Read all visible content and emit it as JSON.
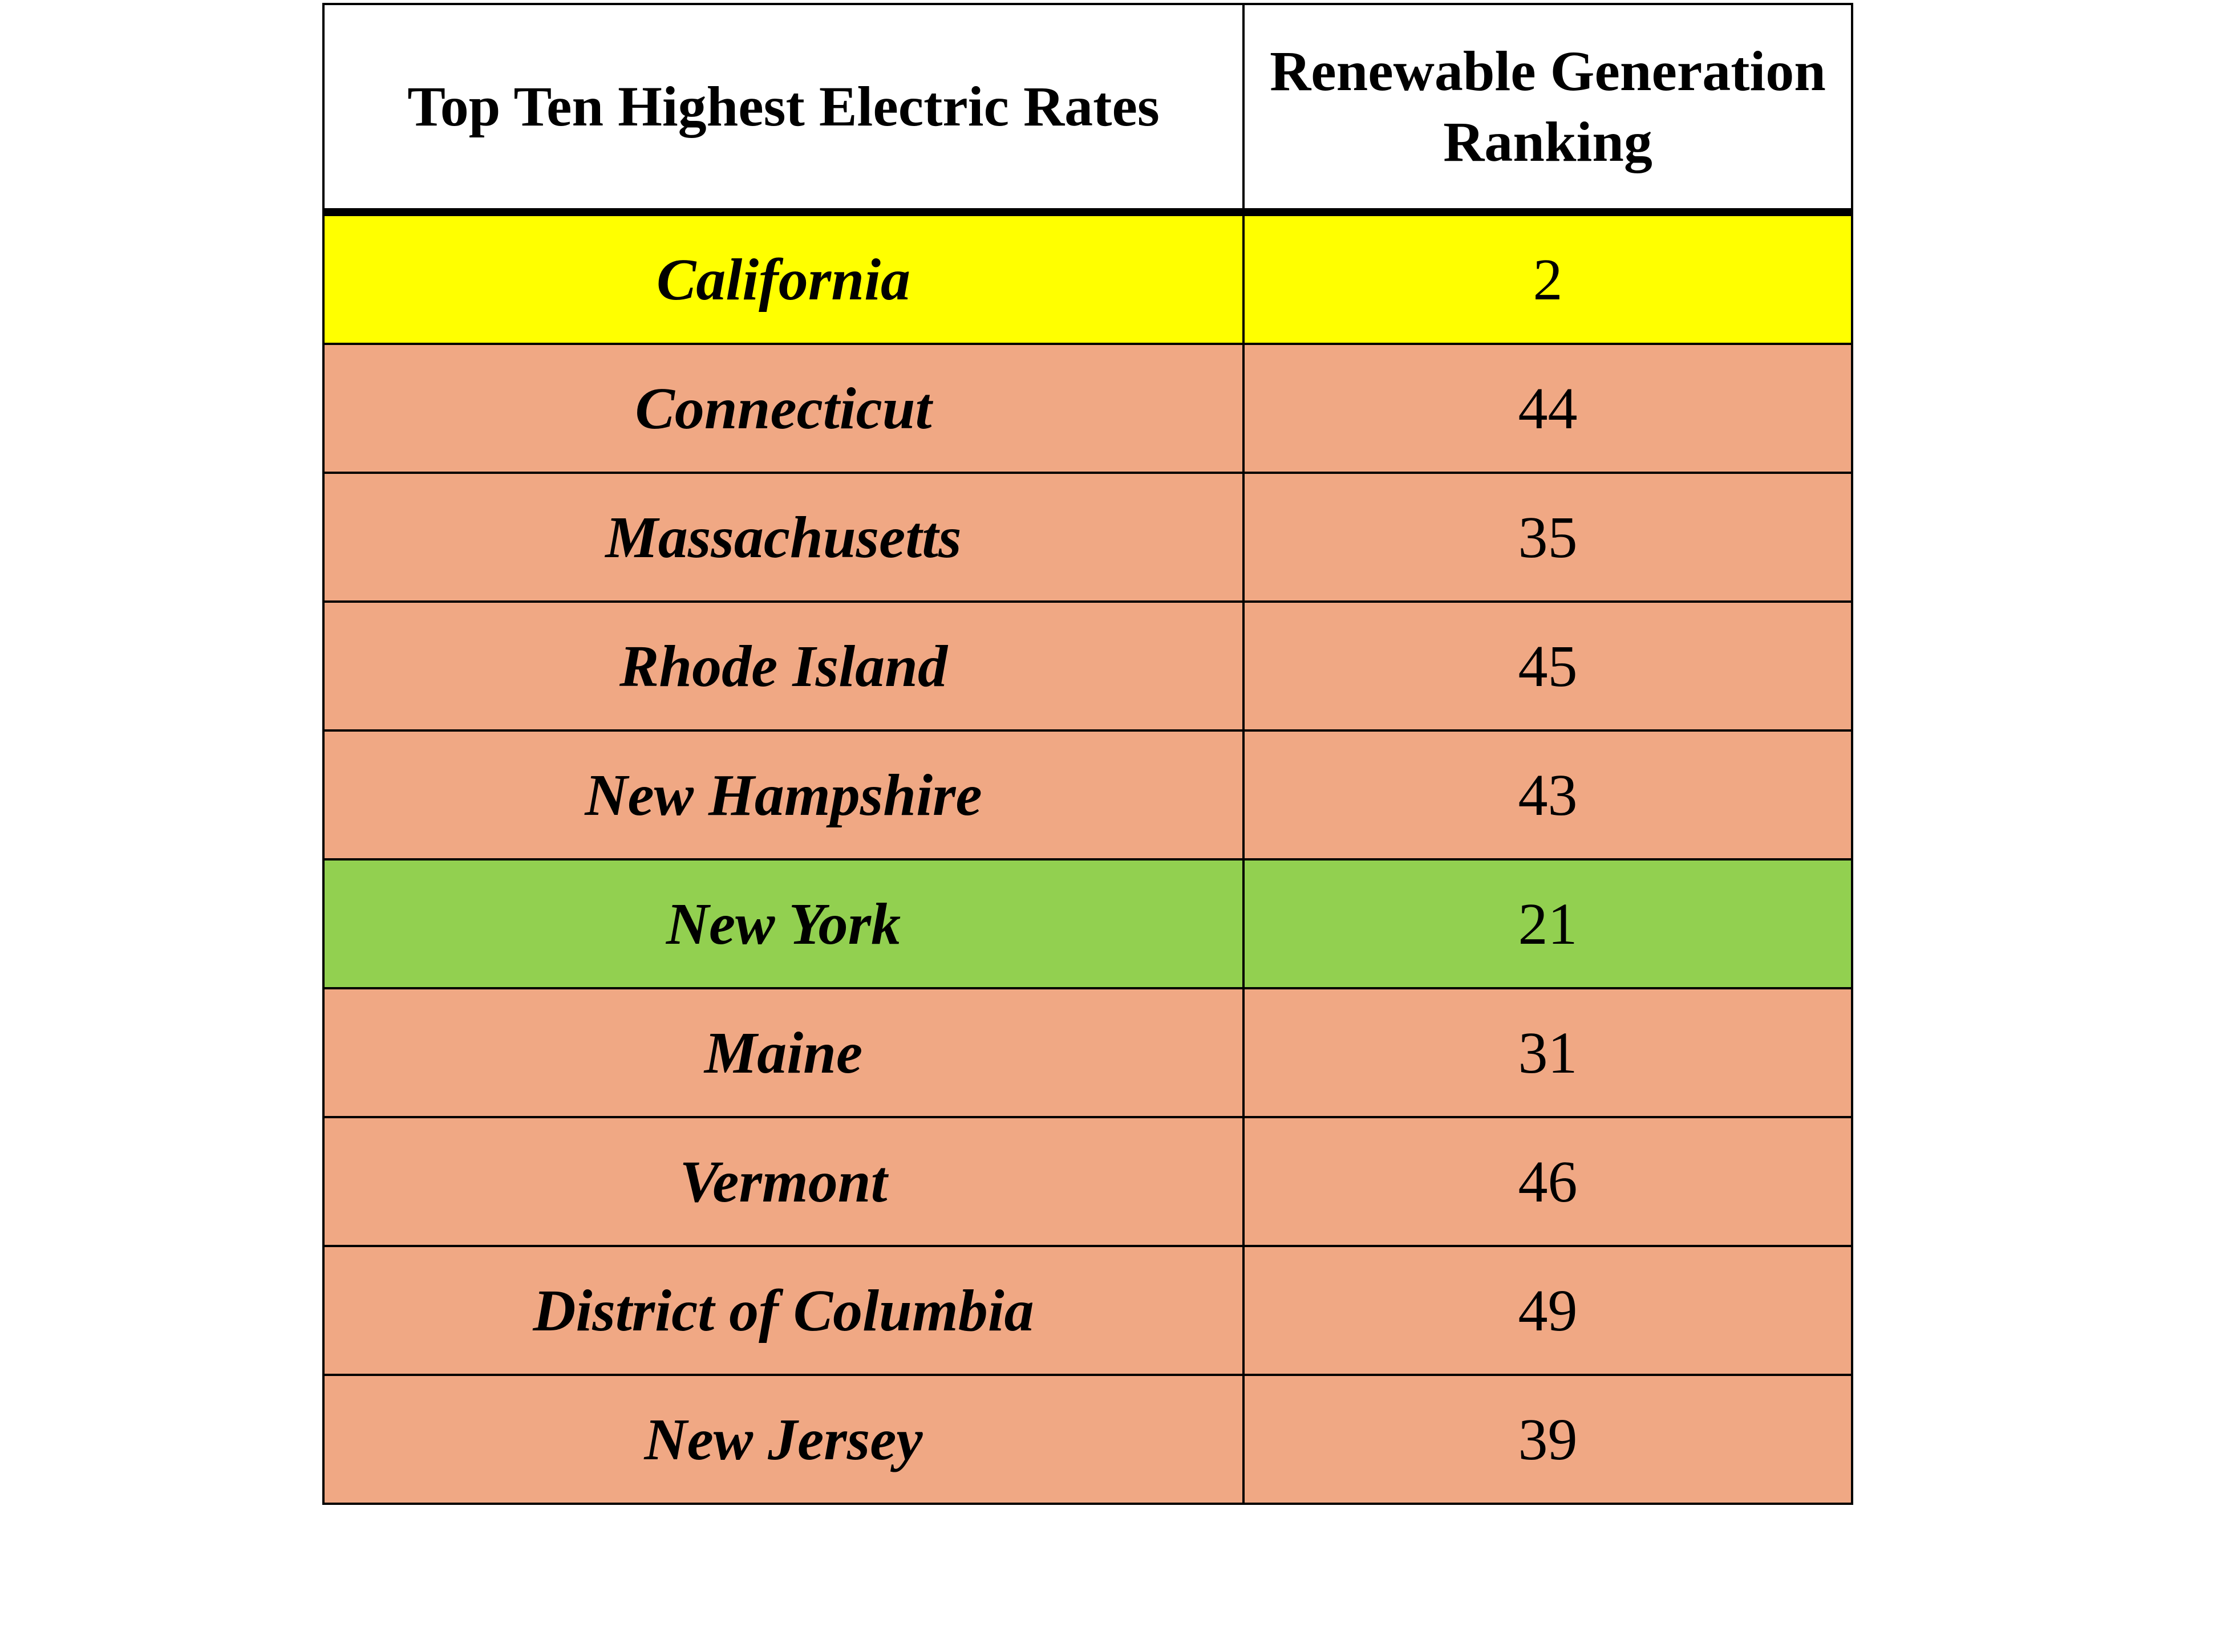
{
  "chart_data": {
    "type": "table",
    "columns": [
      "Top Ten Highest Electric Rates",
      "Renewable Generation Ranking"
    ],
    "rows": [
      {
        "state": "California",
        "rank": "2",
        "highlight": "#ffff00"
      },
      {
        "state": "Connecticut",
        "rank": "44",
        "highlight": "#f0a884"
      },
      {
        "state": "Massachusetts",
        "rank": "35",
        "highlight": "#f0a884"
      },
      {
        "state": "Rhode Island",
        "rank": "45",
        "highlight": "#f0a884"
      },
      {
        "state": "New Hampshire",
        "rank": "43",
        "highlight": "#f0a884"
      },
      {
        "state": "New York",
        "rank": "21",
        "highlight": "#92d050"
      },
      {
        "state": "Maine",
        "rank": "31",
        "highlight": "#f0a884"
      },
      {
        "state": "Vermont",
        "rank": "46",
        "highlight": "#f0a884"
      },
      {
        "state": "District of Columbia",
        "rank": "49",
        "highlight": "#f0a884"
      },
      {
        "state": "New Jersey",
        "rank": "39",
        "highlight": "#f0a884"
      }
    ]
  }
}
